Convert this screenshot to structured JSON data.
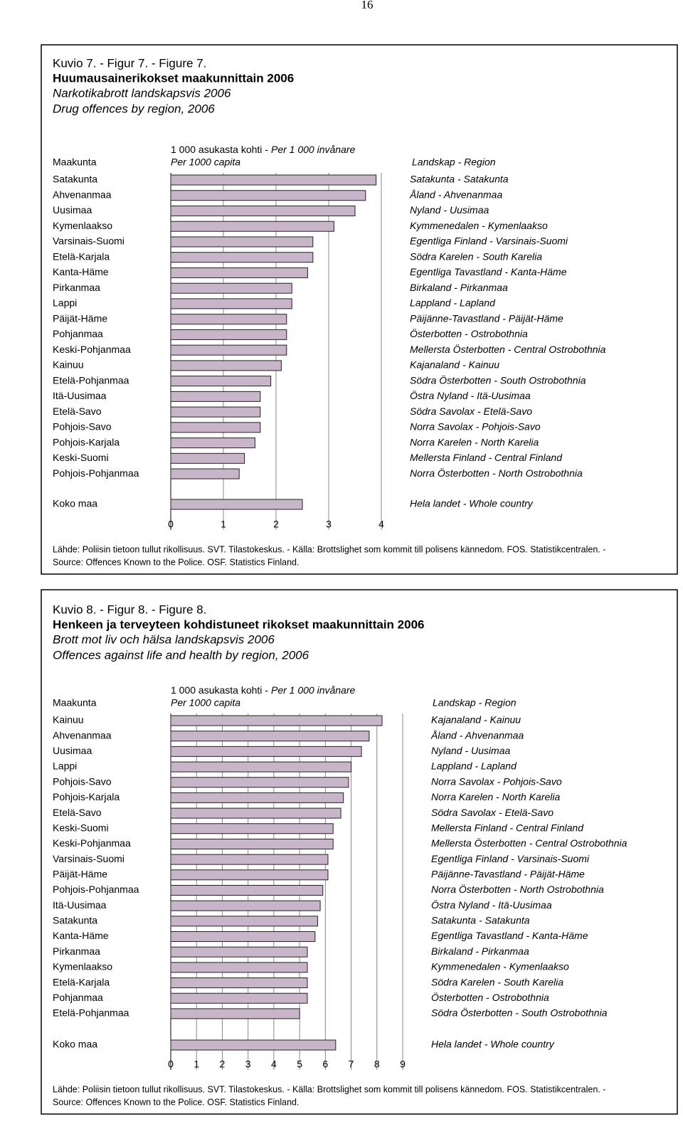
{
  "page_number": "16",
  "chart_data": [
    {
      "type": "bar",
      "figure_label": "Kuvio 7. - Figur 7. - Figure 7.",
      "title": "Huumausainerikokset maakunnittain 2006",
      "subtitle_sv": "Narkotikabrott landskapsvis 2006",
      "subtitle_en": "Drug offences by region, 2006",
      "category_header": "Maakunta",
      "unit_fi": "1 000 asukasta kohti -",
      "unit_sv": "Per 1 000 invånare",
      "unit_en": "Per 1000 capita",
      "region_header": "Landskap - Region",
      "categories": [
        "Satakunta",
        "Ahvenanmaa",
        "Uusimaa",
        "Kymenlaakso",
        "Varsinais-Suomi",
        "Etelä-Karjala",
        "Kanta-Häme",
        "Pirkanmaa",
        "Lappi",
        "Päijät-Häme",
        "Pohjanmaa",
        "Keski-Pohjanmaa",
        "Kainuu",
        "Etelä-Pohjanmaa",
        "Itä-Uusimaa",
        "Etelä-Savo",
        "Pohjois-Savo",
        "Pohjois-Karjala",
        "Keski-Suomi",
        "Pohjois-Pohjanmaa"
      ],
      "region_labels": [
        "Satakunta - Satakunta",
        "Åland - Ahvenanmaa",
        "Nyland - Uusimaa",
        "Kymmenedalen - Kymenlaakso",
        "Egentliga Finland - Varsinais-Suomi",
        "Södra Karelen - South Karelia",
        "Egentliga Tavastland - Kanta-Häme",
        "Birkaland - Pirkanmaa",
        "Lappland - Lapland",
        "Päijänne-Tavastland - Päijät-Häme",
        "Österbotten - Ostrobothnia",
        "Mellersta Österbotten - Central Ostrobothnia",
        "Kajanaland - Kainuu",
        "Södra Österbotten - South Ostrobothnia",
        "Östra Nyland - Itä-Uusimaa",
        "Södra Savolax - Etelä-Savo",
        "Norra Savolax - Pohjois-Savo",
        "Norra Karelen - North Karelia",
        "Mellersta Finland - Central Finland",
        "Norra Österbotten - North Ostrobothnia"
      ],
      "values": [
        3.9,
        3.7,
        3.5,
        3.1,
        2.7,
        2.7,
        2.6,
        2.3,
        2.3,
        2.2,
        2.2,
        2.2,
        2.1,
        1.9,
        1.7,
        1.7,
        1.7,
        1.6,
        1.4,
        1.3
      ],
      "total_category": "Koko maa",
      "total_region_label": "Hela landet - Whole country",
      "total_value": 2.5,
      "xlim": [
        0,
        4
      ],
      "xticks": [
        0,
        1,
        2,
        3,
        4
      ],
      "color": "#c9b5c9",
      "grid": true,
      "source": [
        "Lähde: Poliisin tietoon tullut rikollisuus. SVT. Tilastokeskus. - Källa: Brottslighet som kommit till polisens kännedom. FOS. Statistikcentralen. -",
        "Source: Offences Known to the Police. OSF. Statistics Finland."
      ]
    },
    {
      "type": "bar",
      "figure_label": "Kuvio 8. - Figur 8. - Figure 8.",
      "title": "Henkeen ja terveyteen kohdistuneet rikokset maakunnittain 2006",
      "subtitle_sv": "Brott mot liv och hälsa landskapsvis 2006",
      "subtitle_en": "Offences against life and health by region, 2006",
      "category_header": "Maakunta",
      "unit_fi": "1 000 asukasta kohti -",
      "unit_sv": "Per 1 000 invånare",
      "unit_en": "Per 1000 capita",
      "region_header": "Landskap - Region",
      "categories": [
        "Kainuu",
        "Ahvenanmaa",
        "Uusimaa",
        "Lappi",
        "Pohjois-Savo",
        "Pohjois-Karjala",
        "Etelä-Savo",
        "Keski-Suomi",
        "Keski-Pohjanmaa",
        "Varsinais-Suomi",
        "Päijät-Häme",
        "Pohjois-Pohjanmaa",
        "Itä-Uusimaa",
        "Satakunta",
        "Kanta-Häme",
        "Pirkanmaa",
        "Kymenlaakso",
        "Etelä-Karjala",
        "Pohjanmaa",
        "Etelä-Pohjanmaa"
      ],
      "region_labels": [
        "Kajanaland - Kainuu",
        "Åland - Ahvenanmaa",
        "Nyland - Uusimaa",
        "Lappland - Lapland",
        "Norra Savolax - Pohjois-Savo",
        "Norra Karelen - North Karelia",
        "Södra Savolax - Etelä-Savo",
        "Mellersta Finland - Central Finland",
        "Mellersta Österbotten - Central Ostrobothnia",
        "Egentliga Finland - Varsinais-Suomi",
        "Päijänne-Tavastland - Päijät-Häme",
        "Norra Österbotten - North Ostrobothnia",
        "Östra Nyland - Itä-Uusimaa",
        "Satakunta - Satakunta",
        "Egentliga Tavastland - Kanta-Häme",
        "Birkaland - Pirkanmaa",
        "Kymmenedalen - Kymenlaakso",
        "Södra Karelen - South Karelia",
        "Österbotten - Ostrobothnia",
        "Södra Österbotten - South Ostrobothnia"
      ],
      "values": [
        8.2,
        7.7,
        7.4,
        7.0,
        6.9,
        6.7,
        6.6,
        6.3,
        6.3,
        6.1,
        6.1,
        5.9,
        5.8,
        5.7,
        5.6,
        5.3,
        5.3,
        5.3,
        5.3,
        5.0
      ],
      "total_category": "Koko maa",
      "total_region_label": "Hela landet - Whole country",
      "total_value": 6.4,
      "xlim": [
        0,
        9
      ],
      "xticks": [
        0,
        1,
        2,
        3,
        4,
        5,
        6,
        7,
        8,
        9
      ],
      "color": "#c9b5c9",
      "grid": true,
      "source": [
        "Lähde: Poliisin tietoon tullut rikollisuus. SVT. Tilastokeskus. - Källa: Brottslighet som kommit till polisens kännedom. FOS. Statistikcentralen. -",
        "Source: Offences Known to the Police. OSF. Statistics Finland."
      ]
    }
  ]
}
